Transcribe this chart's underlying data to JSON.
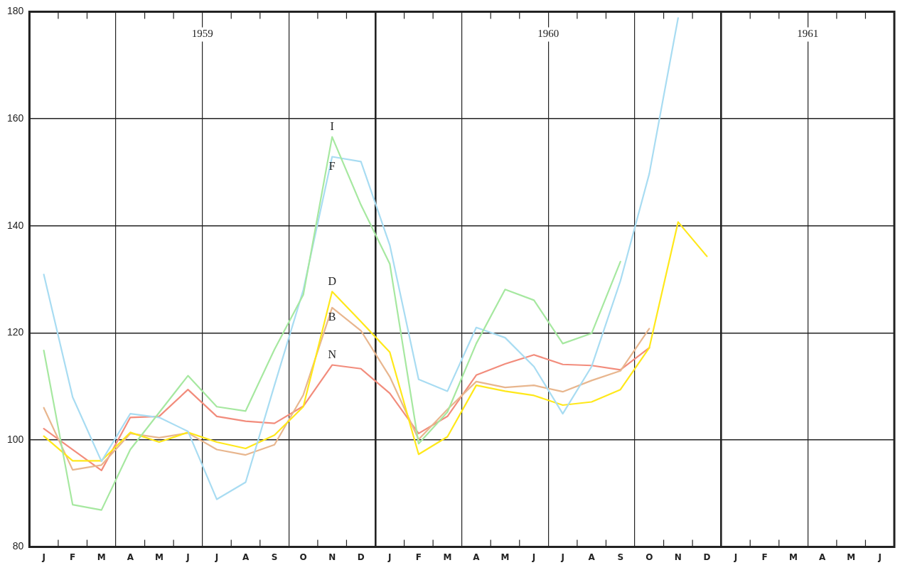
{
  "chart_data": {
    "type": "line",
    "categories": [
      "J",
      "F",
      "M",
      "A",
      "M",
      "J",
      "J",
      "A",
      "S",
      "O",
      "N",
      "D",
      "J",
      "F",
      "M",
      "A",
      "M",
      "J",
      "J",
      "A",
      "S",
      "O",
      "N",
      "D",
      "J",
      "F",
      "M",
      "A",
      "M",
      "J"
    ],
    "annotations": [
      "1959",
      "1960",
      "1961"
    ],
    "series": [
      {
        "name": "I",
        "color": "#a6e8a0",
        "values": [
          116.7,
          87.9,
          86.9,
          98.2,
          105.1,
          112.0,
          106.2,
          105.4,
          116.9,
          127.1,
          156.6,
          143.9,
          132.9,
          99.3,
          105.2,
          118.0,
          128.1,
          126.1,
          118.0,
          119.9,
          133.3,
          null,
          null,
          null,
          null,
          null,
          null,
          null,
          null,
          null
        ]
      },
      {
        "name": "F",
        "color": "#a8dcf2",
        "values": [
          130.9,
          108.0,
          96.0,
          104.9,
          104.2,
          101.6,
          88.9,
          92.1,
          110.2,
          128.0,
          152.9,
          152.0,
          136.4,
          111.3,
          109.1,
          121.0,
          119.1,
          113.7,
          104.9,
          113.7,
          129.7,
          149.7,
          178.8,
          null,
          null,
          null,
          null,
          null,
          null,
          null
        ]
      },
      {
        "name": "D",
        "color": "#ffe81a",
        "values": [
          100.7,
          96.1,
          96.1,
          101.4,
          99.6,
          101.4,
          99.6,
          98.4,
          100.9,
          106.2,
          127.7,
          122.1,
          116.4,
          97.3,
          100.6,
          110.2,
          109.1,
          108.3,
          106.5,
          107.1,
          109.4,
          117.2,
          140.7,
          134.3,
          null,
          null,
          null,
          null,
          null,
          null
        ]
      },
      {
        "name": "B",
        "color": "#e8b68e",
        "values": [
          106.0,
          94.4,
          95.3,
          101.2,
          100.4,
          101.3,
          98.2,
          97.2,
          99.1,
          108.4,
          124.7,
          120.4,
          111.8,
          100.1,
          105.7,
          110.9,
          109.8,
          110.2,
          109.0,
          111.1,
          112.9,
          120.8,
          null,
          null,
          null,
          null,
          null,
          null,
          null,
          null
        ]
      },
      {
        "name": "N",
        "color": "#f28c7c",
        "values": [
          102.1,
          98.2,
          94.3,
          104.2,
          104.4,
          109.4,
          104.4,
          103.5,
          103.1,
          106.3,
          114.0,
          113.3,
          108.7,
          101.2,
          104.4,
          112.1,
          114.2,
          115.9,
          114.1,
          113.9,
          113.1,
          117.2,
          null,
          null,
          null,
          null,
          null,
          null,
          null,
          null
        ]
      }
    ],
    "ylim": [
      80,
      180
    ],
    "yticks": [
      80,
      100,
      120,
      140,
      160,
      180
    ],
    "grid": true,
    "legend": false,
    "marker": "none",
    "line_style": "solid"
  }
}
